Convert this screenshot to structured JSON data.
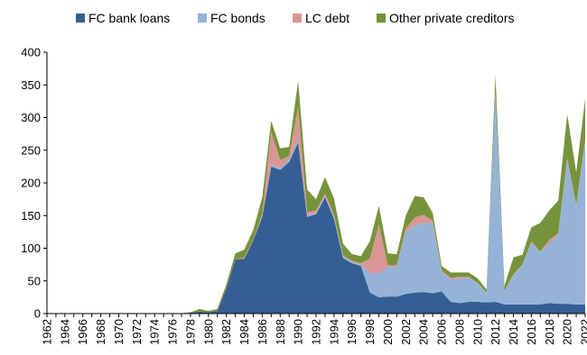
{
  "chart_data": {
    "type": "area",
    "stacked": true,
    "title": "",
    "xlabel": "",
    "ylabel": "",
    "ylim": [
      0,
      400
    ],
    "yticks": [
      0,
      50,
      100,
      150,
      200,
      250,
      300,
      350,
      400
    ],
    "xtick_labels": [
      "1962",
      "1964",
      "1966",
      "1968",
      "1970",
      "1972",
      "1974",
      "1976",
      "1978",
      "1980",
      "1982",
      "1984",
      "1986",
      "1988",
      "1990",
      "1992",
      "1994",
      "1996",
      "1998",
      "2000",
      "2002",
      "2004",
      "2006",
      "2008",
      "2010",
      "2012",
      "2014",
      "2016",
      "2018",
      "2020",
      "2022"
    ],
    "grid": false,
    "legend_position": "top",
    "x": [
      1962,
      1963,
      1964,
      1965,
      1966,
      1967,
      1968,
      1969,
      1970,
      1971,
      1972,
      1973,
      1974,
      1975,
      1976,
      1977,
      1978,
      1979,
      1980,
      1981,
      1982,
      1983,
      1984,
      1985,
      1986,
      1987,
      1988,
      1989,
      1990,
      1991,
      1992,
      1993,
      1994,
      1995,
      1996,
      1997,
      1998,
      1999,
      2000,
      2001,
      2002,
      2003,
      2004,
      2005,
      2006,
      2007,
      2008,
      2009,
      2010,
      2011,
      2012,
      2013,
      2014,
      2015,
      2016,
      2017,
      2018,
      2019,
      2020,
      2021,
      2022
    ],
    "series": [
      {
        "name": "FC bank loans",
        "color": "#345f95",
        "values": [
          0.5,
          0.5,
          0.5,
          0.5,
          0.5,
          0.5,
          0.5,
          0.5,
          0.5,
          0.5,
          0.5,
          0.5,
          0.5,
          0.5,
          0.5,
          0.5,
          1,
          3,
          2,
          4,
          38,
          83,
          84,
          112,
          148,
          225,
          220,
          232,
          262,
          148,
          152,
          178,
          145,
          85,
          77,
          73,
          32,
          25,
          26,
          26,
          30,
          32,
          33,
          31,
          34,
          18,
          16,
          18,
          18,
          17,
          18,
          14,
          14,
          14,
          14,
          14,
          16,
          15,
          15,
          14,
          14
        ]
      },
      {
        "name": "FC bonds",
        "color": "#95b3d7",
        "values": [
          0,
          0,
          0,
          0,
          0,
          0,
          0,
          0,
          0,
          0,
          0,
          0,
          0,
          0,
          0,
          0,
          0,
          0,
          0,
          0,
          0,
          0,
          0,
          0,
          0,
          3,
          3,
          4,
          4,
          2,
          2,
          2,
          2,
          2,
          2,
          2,
          30,
          37,
          45,
          46,
          95,
          103,
          106,
          107,
          30,
          34,
          38,
          37,
          28,
          15,
          320,
          20,
          45,
          60,
          95,
          80,
          92,
          105,
          220,
          150,
          250
        ]
      },
      {
        "name": "LC debt",
        "color": "#da9694",
        "values": [
          0,
          0,
          0,
          0,
          0,
          0,
          0,
          0,
          0,
          0,
          0,
          0,
          0,
          0,
          0,
          0,
          0,
          0,
          0,
          0,
          0,
          0,
          2,
          1,
          5,
          50,
          12,
          5,
          50,
          5,
          4,
          4,
          4,
          2,
          2,
          2,
          22,
          75,
          3,
          2,
          5,
          12,
          12,
          4,
          2,
          3,
          2,
          1,
          1,
          0,
          1,
          1,
          1,
          1,
          1,
          1,
          5,
          3,
          3,
          2,
          2
        ]
      },
      {
        "name": "Other private creditors",
        "color": "#76933c",
        "values": [
          0,
          0,
          0,
          0,
          0,
          0,
          0,
          0,
          0,
          0,
          0,
          0,
          0,
          0,
          0,
          0,
          1,
          4,
          2,
          3,
          7,
          9,
          12,
          15,
          25,
          17,
          18,
          14,
          40,
          35,
          17,
          25,
          25,
          18,
          10,
          11,
          27,
          28,
          18,
          17,
          20,
          33,
          27,
          12,
          7,
          8,
          7,
          7,
          7,
          5,
          26,
          7,
          26,
          15,
          22,
          44,
          45,
          50,
          67,
          50,
          63
        ]
      }
    ]
  }
}
